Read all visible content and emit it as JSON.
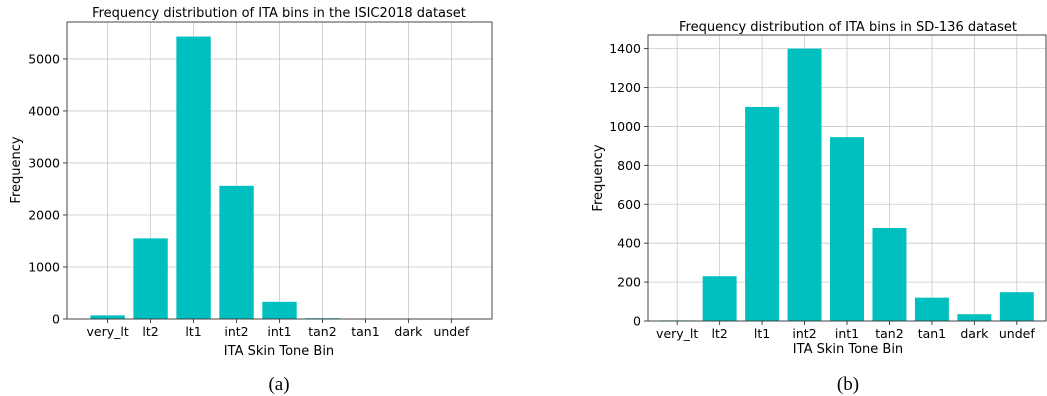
{
  "colors": {
    "bar": "#00bfbf",
    "grid": "#c8c8c8"
  },
  "chart_data": [
    {
      "type": "bar",
      "title": "Frequency distribution of ITA bins in the ISIC2018 dataset",
      "xlabel": "ITA Skin Tone Bin",
      "ylabel": "Frequency",
      "categories": [
        "very_lt",
        "lt2",
        "lt1",
        "int2",
        "int1",
        "tan2",
        "tan1",
        "dark",
        "undef"
      ],
      "values": [
        70,
        1550,
        5430,
        2560,
        330,
        15,
        2,
        1,
        1
      ],
      "ylim": [
        0,
        5710
      ],
      "yticks": [
        0,
        1000,
        2000,
        3000,
        4000,
        5000
      ],
      "grid": true,
      "caption": "(a)"
    },
    {
      "type": "bar",
      "title": "Frequency distribution of ITA bins in SD-136 dataset",
      "xlabel": "ITA Skin Tone Bin",
      "ylabel": "Frequency",
      "categories": [
        "very_lt",
        "lt2",
        "lt1",
        "int2",
        "int1",
        "tan2",
        "tan1",
        "dark",
        "undef"
      ],
      "values": [
        3,
        230,
        1100,
        1400,
        945,
        478,
        120,
        35,
        148
      ],
      "ylim": [
        0,
        1470
      ],
      "yticks": [
        0,
        200,
        400,
        600,
        800,
        1000,
        1200,
        1400
      ],
      "grid": true,
      "caption": "(b)"
    }
  ]
}
